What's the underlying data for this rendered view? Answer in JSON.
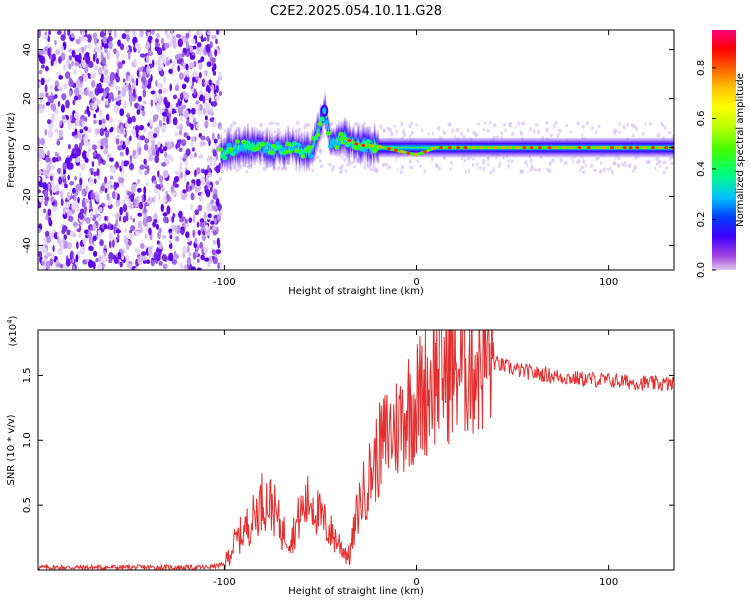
{
  "chart_data": [
    {
      "type": "heatmap",
      "title": "C2E2.2025.054.10.11.G28",
      "xlabel": "Height of straight line (km)",
      "ylabel": "Frequency (Hz)",
      "xlim": [
        -197,
        134
      ],
      "ylim": [
        -50,
        48
      ],
      "x_ticks": [
        -100,
        0,
        100
      ],
      "y_ticks": [
        40,
        20,
        0,
        -20,
        -40
      ],
      "noise_region_x": [
        -197,
        -102
      ],
      "signal_onset_x": -102,
      "colorbar": {
        "label": "Normalized spectral amplitude",
        "range": [
          0.0,
          0.95
        ],
        "ticks": [
          0.0,
          0.2,
          0.4,
          0.6,
          0.8
        ],
        "colors": [
          "#e0c8f0",
          "#a040e0",
          "#4000ff",
          "#0040ff",
          "#00c0ff",
          "#00ff80",
          "#40ff00",
          "#c0ff00",
          "#ffff00",
          "#ffc000",
          "#ff6000",
          "#ff0000",
          "#ff0080"
        ]
      },
      "ridge": [
        {
          "x": -102,
          "y": -3
        },
        {
          "x": -95,
          "y": 0
        },
        {
          "x": -85,
          "y": 1
        },
        {
          "x": -75,
          "y": -1
        },
        {
          "x": -65,
          "y": 0
        },
        {
          "x": -55,
          "y": -2
        },
        {
          "x": -48,
          "y": 15
        },
        {
          "x": -45,
          "y": 1
        },
        {
          "x": -38,
          "y": 4
        },
        {
          "x": -30,
          "y": 1
        },
        {
          "x": -20,
          "y": 0.5
        },
        {
          "x": 0,
          "y": -3
        },
        {
          "x": 10,
          "y": 0
        },
        {
          "x": 60,
          "y": 0
        },
        {
          "x": 134,
          "y": 0
        }
      ]
    },
    {
      "type": "line",
      "xlabel": "Height of straight line (km)",
      "ylabel": "SNR (10 * v/v)",
      "y_multiplier": "(x10",
      "y_multiplier_exp": "4",
      "y_multiplier_close": ")",
      "xlim": [
        -197,
        134
      ],
      "ylim": [
        0,
        1.85
      ],
      "x_ticks": [
        -100,
        0,
        100
      ],
      "y_ticks": [
        0.5,
        1.0,
        1.5
      ],
      "y_tick_labels": [
        "0.5",
        "1.0",
        "1.5"
      ],
      "color": "#e62e2e",
      "series": [
        {
          "name": "SNR",
          "points": [
            [
              -197,
              0.02
            ],
            [
              -150,
              0.02
            ],
            [
              -110,
              0.02
            ],
            [
              -100,
              0.04
            ],
            [
              -95,
              0.2
            ],
            [
              -90,
              0.3
            ],
            [
              -85,
              0.4
            ],
            [
              -80,
              0.55
            ],
            [
              -75,
              0.5
            ],
            [
              -70,
              0.3
            ],
            [
              -65,
              0.25
            ],
            [
              -60,
              0.45
            ],
            [
              -55,
              0.55
            ],
            [
              -50,
              0.4
            ],
            [
              -45,
              0.3
            ],
            [
              -40,
              0.2
            ],
            [
              -35,
              0.1
            ],
            [
              -30,
              0.5
            ],
            [
              -25,
              0.7
            ],
            [
              -20,
              0.9
            ],
            [
              -15,
              1.05
            ],
            [
              -10,
              1.1
            ],
            [
              -5,
              1.25
            ],
            [
              0,
              1.3
            ],
            [
              5,
              1.4
            ],
            [
              10,
              1.5
            ],
            [
              15,
              1.55
            ],
            [
              20,
              1.55
            ],
            [
              25,
              1.6
            ],
            [
              30,
              1.6
            ],
            [
              35,
              1.65
            ],
            [
              40,
              1.6
            ],
            [
              50,
              1.55
            ],
            [
              60,
              1.52
            ],
            [
              70,
              1.5
            ],
            [
              80,
              1.48
            ],
            [
              90,
              1.47
            ],
            [
              100,
              1.46
            ],
            [
              110,
              1.45
            ],
            [
              120,
              1.44
            ],
            [
              134,
              1.43
            ]
          ]
        }
      ]
    }
  ]
}
